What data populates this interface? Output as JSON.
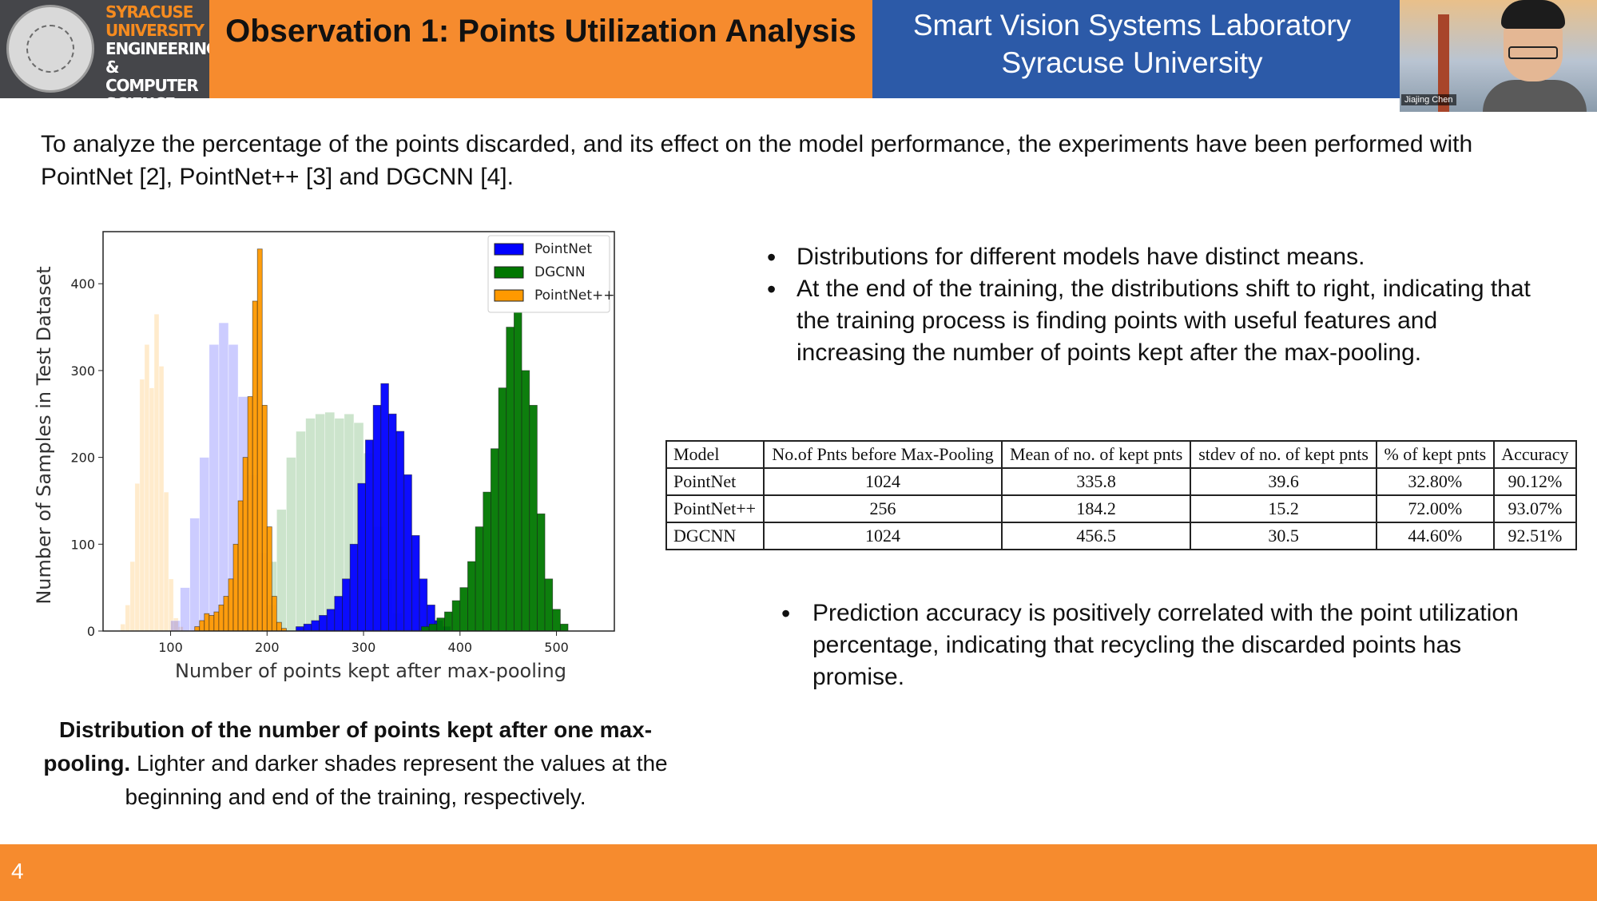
{
  "header": {
    "logo_lines": [
      "SYRACUSE",
      "UNIVERSITY",
      "ENGINEERING",
      "& COMPUTER",
      "SCIENCE"
    ],
    "title": "Observation 1: Points Utilization Analysis",
    "lab_line1": "Smart Vision Systems Laboratory",
    "lab_line2": "Syracuse University",
    "participant_name": "Jiajing Chen"
  },
  "intro": "To analyze the percentage of the points discarded, and its effect on the model performance, the experiments have been performed with PointNet [2], PointNet++ [3] and DGCNN [4].",
  "bullets_top": [
    "Distributions for different models have distinct means.",
    "At the end of the training, the distributions shift to right, indicating that the training process is finding points with useful features and increasing the number of points kept after the max-pooling."
  ],
  "bullet_bottom": "Prediction accuracy is positively correlated with the point utilization percentage, indicating that recycling the discarded points has promise.",
  "caption_bold": "Distribution of the number of points kept after one max-pooling.",
  "caption_rest": " Lighter and darker shades represent the values at the beginning and end of the training, respectively.",
  "table": {
    "headers": [
      "Model",
      "No.of Pnts before Max-Pooling",
      "Mean of no. of kept pnts",
      "stdev of no. of kept pnts",
      "% of kept pnts",
      "Accuracy"
    ],
    "rows": [
      [
        "PointNet",
        "1024",
        "335.8",
        "39.6",
        "32.80%",
        "90.12%"
      ],
      [
        "PointNet++",
        "256",
        "184.2",
        "15.2",
        "72.00%",
        "93.07%"
      ],
      [
        "DGCNN",
        "1024",
        "456.5",
        "30.5",
        "44.60%",
        "92.51%"
      ]
    ]
  },
  "footer": {
    "page_number": "4"
  },
  "chart_data": {
    "type": "histogram",
    "xlabel": "Number of points kept after max-pooling",
    "ylabel": "Number of Samples in Test Dataset",
    "xlim": [
      30,
      560
    ],
    "ylim": [
      0,
      460
    ],
    "xticks": [
      100,
      200,
      300,
      400,
      500
    ],
    "yticks": [
      0,
      100,
      200,
      300,
      400
    ],
    "legend_position": "top-right",
    "legend": [
      "PointNet",
      "DGCNN",
      "PointNet++"
    ],
    "colors": {
      "PointNet": "#0000ff",
      "DGCNN": "#007700",
      "PointNet++": "#ff9900"
    },
    "series": [
      {
        "name": "PointNet++",
        "shade": "light",
        "bin_start": 48,
        "bin_width": 5,
        "counts": [
          8,
          30,
          80,
          170,
          290,
          330,
          280,
          365,
          305,
          160,
          60,
          15,
          5
        ]
      },
      {
        "name": "PointNet",
        "shade": "light",
        "bin_start": 100,
        "bin_width": 10,
        "counts": [
          12,
          50,
          130,
          200,
          330,
          355,
          330,
          270,
          180,
          90,
          30
        ]
      },
      {
        "name": "DGCNN",
        "shade": "light",
        "bin_start": 200,
        "bin_width": 10,
        "counts": [
          80,
          140,
          200,
          230,
          245,
          250,
          252,
          245,
          250,
          240,
          205,
          120,
          60,
          20
        ]
      },
      {
        "name": "PointNet++",
        "shade": "dark",
        "bin_start": 125,
        "bin_width": 5,
        "counts": [
          5,
          12,
          20,
          18,
          22,
          30,
          40,
          60,
          100,
          150,
          200,
          270,
          380,
          440,
          260,
          120,
          40,
          10,
          3
        ]
      },
      {
        "name": "PointNet",
        "shade": "dark",
        "bin_start": 230,
        "bin_width": 8,
        "counts": [
          5,
          8,
          12,
          18,
          25,
          40,
          60,
          100,
          170,
          220,
          260,
          285,
          250,
          230,
          180,
          110,
          60,
          30,
          12,
          5
        ]
      },
      {
        "name": "DGCNN",
        "shade": "dark",
        "bin_start": 360,
        "bin_width": 8,
        "counts": [
          5,
          8,
          15,
          22,
          35,
          50,
          80,
          120,
          160,
          210,
          280,
          350,
          375,
          300,
          260,
          135,
          60,
          25,
          8
        ]
      }
    ]
  }
}
